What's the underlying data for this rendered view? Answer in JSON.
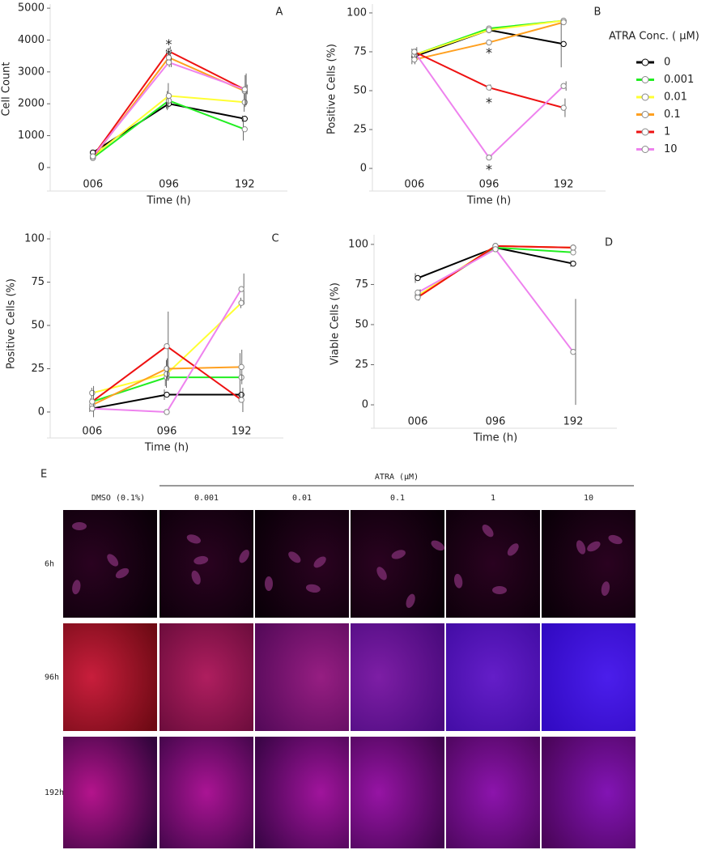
{
  "chart_data": [
    {
      "type": "line",
      "label": "A",
      "x_label": "Time (h)",
      "y_label": "Cell Count",
      "categories": [
        "006",
        "096",
        "192"
      ],
      "ylim": [
        -180,
        5130
      ],
      "yticks": [
        0,
        1000,
        2000,
        3000,
        4000,
        5000
      ],
      "series": [
        {
          "color": "#000000",
          "values": [
            470,
            2000,
            1530
          ],
          "errors": [
            0,
            150,
            100
          ]
        },
        {
          "color": "#22ee22",
          "values": [
            300,
            2100,
            1200
          ],
          "errors": [
            0,
            300,
            350
          ]
        },
        {
          "color": "#ffff33",
          "values": [
            350,
            2250,
            2050
          ],
          "errors": [
            0,
            400,
            300
          ]
        },
        {
          "color": "#ffa020",
          "values": [
            300,
            3450,
            2400
          ],
          "errors": [
            0,
            300,
            500
          ]
        },
        {
          "color": "#ee1111",
          "values": [
            350,
            3650,
            2450
          ],
          "errors": [
            0,
            150,
            500
          ]
        },
        {
          "color": "#ee82ee",
          "values": [
            350,
            3300,
            2450
          ],
          "errors": [
            0,
            150,
            150
          ]
        }
      ],
      "annotations": [
        {
          "text": "*",
          "x": "096",
          "y": 3950
        },
        {
          "text": "*",
          "x": "096",
          "y": 3650
        }
      ]
    },
    {
      "type": "line",
      "label": "B",
      "x_label": "Time (h)",
      "y_label": "Positive Cells (%)",
      "categories": [
        "006",
        "096",
        "192"
      ],
      "ylim": [
        -3.1,
        105.7
      ],
      "yticks": [
        0,
        25,
        50,
        75,
        100
      ],
      "legend_title": "ATRA Conc. ( μM)",
      "series": [
        {
          "name": "0",
          "color": "#000000",
          "values": [
            72,
            89,
            80
          ],
          "errors": [
            5,
            0,
            15
          ]
        },
        {
          "name": "0.001",
          "color": "#22ee22",
          "values": [
            73,
            90,
            95
          ],
          "errors": [
            3,
            1,
            1
          ]
        },
        {
          "name": "0.01",
          "color": "#ffff33",
          "values": [
            73,
            89,
            95
          ],
          "errors": [
            3,
            1,
            1
          ]
        },
        {
          "name": "0.1",
          "color": "#ffa020",
          "values": [
            70,
            81,
            94
          ],
          "errors": [
            3,
            1,
            1
          ]
        },
        {
          "name": "1",
          "color": "#ee1111",
          "values": [
            75,
            52,
            39
          ],
          "errors": [
            2,
            2,
            6
          ]
        },
        {
          "name": "10",
          "color": "#ee82ee",
          "values": [
            75,
            7,
            53
          ],
          "errors": [
            3,
            1,
            3
          ]
        }
      ],
      "annotations": [
        {
          "text": "*",
          "x": "096",
          "y": 76
        },
        {
          "text": "*",
          "x": "096",
          "y": 44
        },
        {
          "text": "*",
          "x": "096",
          "y": 1
        }
      ]
    },
    {
      "type": "line",
      "label": "C",
      "x_label": "Time (h)",
      "y_label": "Positive Cells (%)",
      "categories": [
        "006",
        "096",
        "192"
      ],
      "ylim": [
        -4.7,
        104.7
      ],
      "yticks": [
        0,
        25,
        50,
        75,
        100
      ],
      "series": [
        {
          "color": "#000000",
          "values": [
            2,
            10,
            10
          ],
          "errors": [
            2,
            3,
            1
          ]
        },
        {
          "color": "#22ee22",
          "values": [
            6,
            20,
            20
          ],
          "errors": [
            2,
            5,
            14
          ]
        },
        {
          "color": "#ffff33",
          "values": [
            11,
            22,
            63
          ],
          "errors": [
            3,
            8,
            3
          ]
        },
        {
          "color": "#ffa020",
          "values": [
            4,
            25,
            26
          ],
          "errors": [
            2,
            6,
            10
          ]
        },
        {
          "color": "#ee1111",
          "values": [
            6,
            38,
            7
          ],
          "errors": [
            9,
            20,
            7
          ]
        },
        {
          "color": "#ee82ee",
          "values": [
            2,
            0,
            71
          ],
          "errors": [
            1,
            0,
            9
          ]
        }
      ]
    },
    {
      "type": "line",
      "label": "D",
      "x_label": "Time (h)",
      "y_label": "Viable Cells (%)",
      "categories": [
        "006",
        "096",
        "192"
      ],
      "ylim": [
        -3.5,
        106
      ],
      "yticks": [
        0,
        25,
        50,
        75,
        100
      ],
      "series": [
        {
          "color": "#000000",
          "values": [
            79,
            98,
            88
          ],
          "errors": [
            3,
            1,
            2
          ]
        },
        {
          "color": "#22ee22",
          "values": [
            68,
            98,
            95
          ],
          "errors": [
            2,
            1,
            1
          ]
        },
        {
          "color": "#ffff33",
          "values": [
            68,
            99,
            98
          ],
          "errors": [
            2,
            1,
            1
          ]
        },
        {
          "color": "#ffa020",
          "values": [
            67,
            99,
            98
          ],
          "errors": [
            2,
            1,
            1
          ]
        },
        {
          "color": "#ee1111",
          "values": [
            67,
            99,
            98
          ],
          "errors": [
            2,
            1,
            1
          ]
        },
        {
          "color": "#ee82ee",
          "values": [
            70,
            97,
            33
          ],
          "errors": [
            2,
            1,
            33
          ]
        }
      ]
    }
  ],
  "panel_e": {
    "label": "E",
    "group_label": "ATRA (μM)",
    "columns": [
      "DMSO (0.1%)",
      "0.001",
      "0.01",
      "0.1",
      "1",
      "10"
    ],
    "rows": [
      "6h",
      "96h",
      "192h"
    ]
  }
}
